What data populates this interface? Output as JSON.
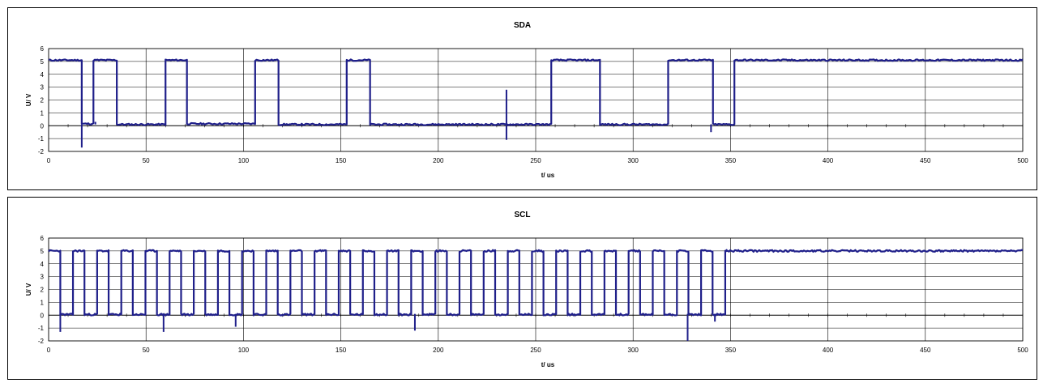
{
  "charts": [
    {
      "type": "line",
      "title": "SDA",
      "xlabel": "t/ us",
      "ylabel": "U/ V",
      "xlim": [
        0,
        500
      ],
      "ylim": [
        -2,
        6
      ],
      "x_ticks": [
        0,
        50,
        100,
        150,
        200,
        250,
        300,
        350,
        400,
        450,
        500
      ],
      "y_ticks": [
        -2,
        -1,
        0,
        1,
        2,
        3,
        4,
        5,
        6
      ],
      "grid": "major",
      "line_color": "#1f1f8a",
      "low": 0.1,
      "high": 5.1,
      "transitions": [
        [
          0,
          5.1
        ],
        [
          17,
          0.15
        ],
        [
          23,
          5.1
        ],
        [
          35,
          0.1
        ],
        [
          60,
          5.1
        ],
        [
          71,
          0.15
        ],
        [
          106,
          5.1
        ],
        [
          118,
          0.1
        ],
        [
          153,
          5.1
        ],
        [
          165,
          0.1
        ],
        [
          258,
          5.1
        ],
        [
          283,
          0.1
        ],
        [
          318,
          5.1
        ],
        [
          341,
          0.1
        ],
        [
          352,
          5.1
        ]
      ],
      "spikes": [
        [
          17,
          -1.7
        ],
        [
          235,
          2.8
        ],
        [
          235,
          -1.1
        ],
        [
          340,
          -0.5
        ],
        [
          24,
          0.3
        ]
      ]
    },
    {
      "type": "line",
      "title": "SCL",
      "xlabel": "t/ us",
      "ylabel": "U/ V",
      "xlim": [
        0,
        500
      ],
      "ylim": [
        -2,
        6
      ],
      "x_ticks": [
        0,
        50,
        100,
        150,
        200,
        250,
        300,
        350,
        400,
        450,
        500
      ],
      "y_ticks": [
        -2,
        -1,
        0,
        1,
        2,
        3,
        4,
        5,
        6
      ],
      "grid": "major",
      "line_color": "#1f1f8a",
      "low": 0.05,
      "high": 5.0,
      "clock_start": 6,
      "clock_period": 12.4,
      "clock_low_duration": 6.5,
      "clock_pulses": 28,
      "end_high_from": 348,
      "spikes": [
        [
          6,
          -1.3
        ],
        [
          59,
          -1.3
        ],
        [
          96,
          -0.9
        ],
        [
          188,
          -1.2
        ],
        [
          328,
          -2.0
        ],
        [
          342,
          -0.5
        ]
      ]
    }
  ]
}
